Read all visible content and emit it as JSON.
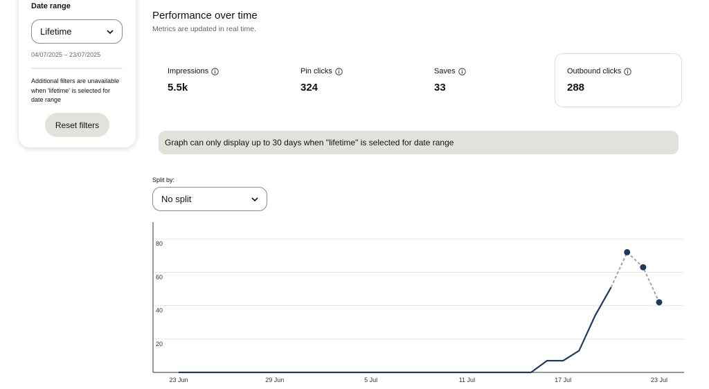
{
  "sidebar": {
    "date_range_label": "Date range",
    "date_select": "Lifetime",
    "date_span": "04/07/2025 – 23/07/2025",
    "note": "Additional filters are unavailable when 'lifetime' is selected for date range",
    "reset_button": "Reset filters"
  },
  "header": {
    "title": "Performance over time",
    "subtitle": "Metrics are updated in real time."
  },
  "metrics": [
    {
      "label": "Impressions",
      "value": "5.5k"
    },
    {
      "label": "Pin clicks",
      "value": "324"
    },
    {
      "label": "Saves",
      "value": "33"
    },
    {
      "label": "Outbound clicks",
      "value": "288"
    }
  ],
  "banner": "Graph can only display up to 30 days when \"lifetime\" is selected for date range",
  "split": {
    "label": "Split by:",
    "select": "No split"
  },
  "chart_data": {
    "type": "line",
    "categories": [
      "23 Jun",
      null,
      null,
      null,
      null,
      null,
      "29 Jun",
      null,
      null,
      null,
      null,
      null,
      "5 Jul",
      null,
      null,
      null,
      null,
      null,
      "11 Jul",
      null,
      null,
      null,
      null,
      null,
      "17 Jul",
      null,
      null,
      null,
      null,
      null,
      "23 Jul"
    ],
    "series": [
      {
        "color": "#1d3a5c",
        "values": [
          0,
          0,
          0,
          0,
          0,
          0,
          0,
          0,
          0,
          0,
          0,
          0,
          0,
          0,
          0,
          0,
          0,
          0,
          0,
          0,
          0,
          0,
          0,
          7,
          7,
          13,
          34,
          51,
          null,
          null,
          null
        ]
      },
      {
        "color": "#9aa4ae",
        "dashed": true,
        "markers": true,
        "marker_color": "#1d3a5c",
        "values": [
          null,
          null,
          null,
          null,
          null,
          null,
          null,
          null,
          null,
          null,
          null,
          null,
          null,
          null,
          null,
          null,
          null,
          null,
          null,
          null,
          null,
          null,
          null,
          null,
          null,
          null,
          null,
          null,
          72,
          63,
          42
        ]
      }
    ],
    "ylim": [
      0,
      90
    ],
    "yticks": [
      20,
      40,
      60,
      80
    ],
    "grid": true
  }
}
